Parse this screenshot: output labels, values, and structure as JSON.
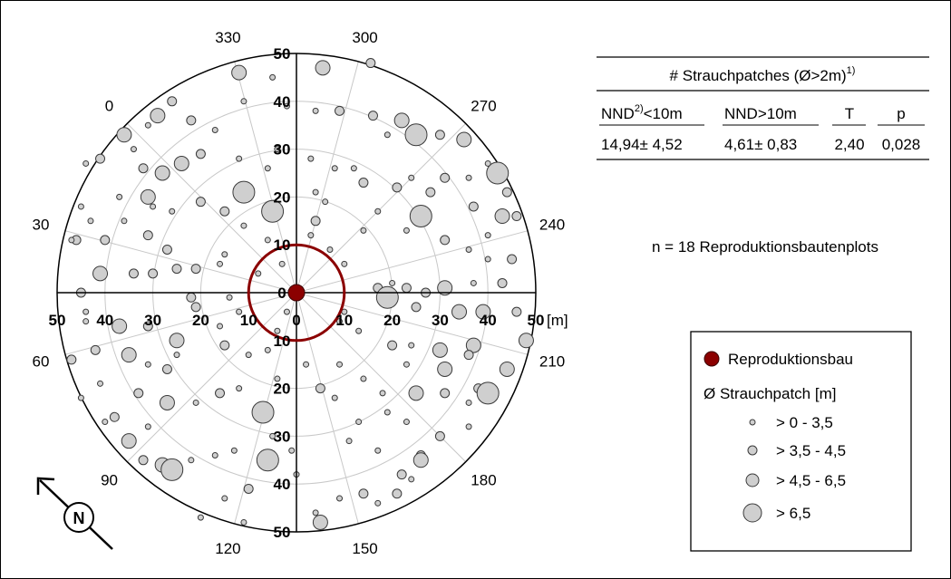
{
  "chart_data": {
    "type": "scatter",
    "subtype": "polar",
    "radial_ticks": [
      "10",
      "20",
      "30",
      "40",
      "50"
    ],
    "radial_zero": "0",
    "radial_max": 50,
    "unit_label": "[m]",
    "angle_labels": [
      {
        "label": "300",
        "deg": 300
      },
      {
        "label": "270",
        "deg": 270
      },
      {
        "label": "240",
        "deg": 240
      },
      {
        "label": "210",
        "deg": 210
      },
      {
        "label": "180",
        "deg": 180
      },
      {
        "label": "150",
        "deg": 150
      },
      {
        "label": "120",
        "deg": 120
      },
      {
        "label": "90",
        "deg": 90
      },
      {
        "label": "60",
        "deg": 60
      },
      {
        "label": "30",
        "deg": 30
      },
      {
        "label": "0",
        "deg": 0
      },
      {
        "label": "330",
        "deg": 330
      }
    ],
    "inner_ring_radius": 10,
    "center_marker": "Reproduktionsbau",
    "colors": {
      "patch_fill": "#cfcfcf",
      "patch_stroke": "#3a3a3a",
      "burrow": "#8b0000",
      "grid": "#c8c8c8"
    },
    "series": [
      {
        "name": "Strauchpatch",
        "size_classes": [
          "> 0 - 3,5",
          "> 3,5 - 4,5",
          "> 4,5 - 6,5",
          "> 6,5"
        ],
        "points": [
          {
            "x": 5.5,
            "y": 47,
            "s": 3
          },
          {
            "x": 15.5,
            "y": 48,
            "s": 2
          },
          {
            "x": -12,
            "y": 46,
            "s": 3
          },
          {
            "x": -5,
            "y": 45,
            "s": 1
          },
          {
            "x": -11,
            "y": 40,
            "s": 1
          },
          {
            "x": -2,
            "y": 39,
            "s": 1
          },
          {
            "x": 4,
            "y": 38,
            "s": 1
          },
          {
            "x": 9,
            "y": 38,
            "s": 2
          },
          {
            "x": 16,
            "y": 37,
            "s": 2
          },
          {
            "x": 22,
            "y": 36,
            "s": 3
          },
          {
            "x": 30,
            "y": 33,
            "s": 2
          },
          {
            "x": 35,
            "y": 32,
            "s": 3
          },
          {
            "x": 25,
            "y": 33,
            "s": 4
          },
          {
            "x": 19,
            "y": 33,
            "s": 1
          },
          {
            "x": -17,
            "y": 34,
            "s": 1
          },
          {
            "x": -22,
            "y": 36,
            "s": 2
          },
          {
            "x": -26,
            "y": 40,
            "s": 2
          },
          {
            "x": -29,
            "y": 37,
            "s": 3
          },
          {
            "x": -31,
            "y": 35,
            "s": 1
          },
          {
            "x": -36,
            "y": 33,
            "s": 3
          },
          {
            "x": -34,
            "y": 30,
            "s": 1
          },
          {
            "x": -41,
            "y": 28,
            "s": 2
          },
          {
            "x": -44,
            "y": 27,
            "s": 1
          },
          {
            "x": -32,
            "y": 26,
            "s": 2
          },
          {
            "x": -28,
            "y": 25,
            "s": 3
          },
          {
            "x": -24,
            "y": 27,
            "s": 3
          },
          {
            "x": -20,
            "y": 29,
            "s": 2
          },
          {
            "x": -12,
            "y": 28,
            "s": 1
          },
          {
            "x": -11,
            "y": 21,
            "s": 4
          },
          {
            "x": -6,
            "y": 26,
            "s": 1
          },
          {
            "x": -4,
            "y": 30,
            "s": 1
          },
          {
            "x": 3,
            "y": 28,
            "s": 1
          },
          {
            "x": 8,
            "y": 26,
            "s": 1
          },
          {
            "x": 12,
            "y": 26,
            "s": 1
          },
          {
            "x": 14,
            "y": 23,
            "s": 2
          },
          {
            "x": 21,
            "y": 22,
            "s": 2
          },
          {
            "x": 24,
            "y": 24,
            "s": 1
          },
          {
            "x": 28,
            "y": 21,
            "s": 2
          },
          {
            "x": 31,
            "y": 24,
            "s": 2
          },
          {
            "x": 36,
            "y": 24,
            "s": 1
          },
          {
            "x": 42,
            "y": 25,
            "s": 4
          },
          {
            "x": 44,
            "y": 21,
            "s": 2
          },
          {
            "x": 37,
            "y": 18,
            "s": 2
          },
          {
            "x": 43,
            "y": 16,
            "s": 3
          },
          {
            "x": 46,
            "y": 16,
            "s": 2
          },
          {
            "x": 40,
            "y": 12,
            "s": 1
          },
          {
            "x": 26,
            "y": 16,
            "s": 4
          },
          {
            "x": 17,
            "y": 17,
            "s": 1
          },
          {
            "x": 4,
            "y": 21,
            "s": 1
          },
          {
            "x": 4,
            "y": 15,
            "s": 2
          },
          {
            "x": 7,
            "y": 9,
            "s": 1
          },
          {
            "x": 10,
            "y": 6,
            "s": 1
          },
          {
            "x": 14,
            "y": 13,
            "s": 1
          },
          {
            "x": 23,
            "y": 13,
            "s": 1
          },
          {
            "x": 31,
            "y": 11,
            "s": 2
          },
          {
            "x": 36,
            "y": 9,
            "s": 1
          },
          {
            "x": 40,
            "y": 7,
            "s": 1
          },
          {
            "x": 45,
            "y": 7,
            "s": 2
          },
          {
            "x": 43,
            "y": 2,
            "s": 2
          },
          {
            "x": 37,
            "y": 2,
            "s": 1
          },
          {
            "x": 31,
            "y": 1,
            "s": 3
          },
          {
            "x": 27,
            "y": 0,
            "s": 2
          },
          {
            "x": 23,
            "y": 1,
            "s": 2
          },
          {
            "x": 20,
            "y": 2,
            "s": 1
          },
          {
            "x": 17,
            "y": 1,
            "s": 2
          },
          {
            "x": 19,
            "y": -1,
            "s": 4
          },
          {
            "x": 25,
            "y": -3,
            "s": 2
          },
          {
            "x": 34,
            "y": -4,
            "s": 3
          },
          {
            "x": 39,
            "y": -4,
            "s": 3
          },
          {
            "x": 46,
            "y": -4,
            "s": 2
          },
          {
            "x": 48,
            "y": -10,
            "s": 3
          },
          {
            "x": 37,
            "y": -11,
            "s": 3
          },
          {
            "x": 30,
            "y": -12,
            "s": 3
          },
          {
            "x": 24,
            "y": -11,
            "s": 1
          },
          {
            "x": 20,
            "y": -11,
            "s": 2
          },
          {
            "x": 13,
            "y": -8,
            "s": 1
          },
          {
            "x": 10,
            "y": -4,
            "s": 1
          },
          {
            "x": 9,
            "y": -6,
            "s": 1
          },
          {
            "x": 9,
            "y": -15,
            "s": 1
          },
          {
            "x": 14,
            "y": -18,
            "s": 1
          },
          {
            "x": 18,
            "y": -21,
            "s": 1
          },
          {
            "x": 23,
            "y": -15,
            "s": 1
          },
          {
            "x": 31,
            "y": -16,
            "s": 3
          },
          {
            "x": 36,
            "y": -13,
            "s": 2
          },
          {
            "x": 38,
            "y": -20,
            "s": 2
          },
          {
            "x": 44,
            "y": -16,
            "s": 3
          },
          {
            "x": 40,
            "y": -21,
            "s": 4
          },
          {
            "x": 36,
            "y": -23,
            "s": 1
          },
          {
            "x": 31,
            "y": -21,
            "s": 2
          },
          {
            "x": 25,
            "y": -21,
            "s": 3
          },
          {
            "x": 19,
            "y": -25,
            "s": 1
          },
          {
            "x": 13,
            "y": -27,
            "s": 1
          },
          {
            "x": 8,
            "y": -22,
            "s": 1
          },
          {
            "x": 5,
            "y": -20,
            "s": 2
          },
          {
            "x": 2,
            "y": -15,
            "s": 1
          },
          {
            "x": -4,
            "y": -18,
            "s": 1
          },
          {
            "x": -6,
            "y": -12,
            "s": 1
          },
          {
            "x": -4,
            "y": -8,
            "s": 1
          },
          {
            "x": -2,
            "y": -4,
            "s": 1
          },
          {
            "x": -12,
            "y": -4,
            "s": 1
          },
          {
            "x": -16,
            "y": -7,
            "s": 1
          },
          {
            "x": -21,
            "y": -3,
            "s": 2
          },
          {
            "x": -25,
            "y": -10,
            "s": 3
          },
          {
            "x": -25,
            "y": -13,
            "s": 1
          },
          {
            "x": -31,
            "y": -7,
            "s": 2
          },
          {
            "x": -37,
            "y": -7,
            "s": 3
          },
          {
            "x": -44,
            "y": -6,
            "s": 1
          },
          {
            "x": -47,
            "y": -14,
            "s": 2
          },
          {
            "x": -42,
            "y": -12,
            "s": 2
          },
          {
            "x": -35,
            "y": -13,
            "s": 3
          },
          {
            "x": -31,
            "y": -15,
            "s": 1
          },
          {
            "x": -27,
            "y": -16,
            "s": 2
          },
          {
            "x": -15,
            "y": -11,
            "s": 2
          },
          {
            "x": -10,
            "y": -13,
            "s": 1
          },
          {
            "x": -12,
            "y": -20,
            "s": 1
          },
          {
            "x": -16,
            "y": -21,
            "s": 2
          },
          {
            "x": -21,
            "y": -23,
            "s": 1
          },
          {
            "x": -27,
            "y": -23,
            "s": 3
          },
          {
            "x": -33,
            "y": -21,
            "s": 2
          },
          {
            "x": -41,
            "y": -19,
            "s": 1
          },
          {
            "x": -45,
            "y": -22,
            "s": 1
          },
          {
            "x": -38,
            "y": -26,
            "s": 2
          },
          {
            "x": -35,
            "y": -31,
            "s": 3
          },
          {
            "x": -32,
            "y": -35,
            "s": 2
          },
          {
            "x": -28,
            "y": -36,
            "s": 3
          },
          {
            "x": -26,
            "y": -37,
            "s": 4
          },
          {
            "x": -22,
            "y": -35,
            "s": 1
          },
          {
            "x": -17,
            "y": -34,
            "s": 1
          },
          {
            "x": -13,
            "y": -33,
            "s": 1
          },
          {
            "x": -7,
            "y": -25,
            "s": 4
          },
          {
            "x": -5,
            "y": -30,
            "s": 1
          },
          {
            "x": -1,
            "y": -33,
            "s": 1
          },
          {
            "x": -6,
            "y": -35,
            "s": 4
          },
          {
            "x": -10,
            "y": -41,
            "s": 2
          },
          {
            "x": -15,
            "y": -43,
            "s": 1
          },
          {
            "x": -20,
            "y": -47,
            "s": 1
          },
          {
            "x": -11,
            "y": -48,
            "s": 1
          },
          {
            "x": 4,
            "y": -46,
            "s": 1
          },
          {
            "x": 5,
            "y": -48,
            "s": 3
          },
          {
            "x": 9,
            "y": -43,
            "s": 1
          },
          {
            "x": 14,
            "y": -42,
            "s": 2
          },
          {
            "x": 17,
            "y": -44,
            "s": 1
          },
          {
            "x": 22,
            "y": -38,
            "s": 2
          },
          {
            "x": 24,
            "y": -39,
            "s": 1
          },
          {
            "x": 21,
            "y": -42,
            "s": 2
          },
          {
            "x": 26,
            "y": -34,
            "s": 2
          },
          {
            "x": 26,
            "y": -35,
            "s": 3
          },
          {
            "x": 30,
            "y": -30,
            "s": 2
          },
          {
            "x": 36,
            "y": -28,
            "s": 1
          },
          {
            "x": 23,
            "y": -27,
            "s": 1
          },
          {
            "x": 17,
            "y": -33,
            "s": 1
          },
          {
            "x": 11,
            "y": -31,
            "s": 1
          },
          {
            "x": 0,
            "y": -38,
            "s": 1
          },
          {
            "x": -31,
            "y": -28,
            "s": 1
          },
          {
            "x": -40,
            "y": -27,
            "s": 1
          },
          {
            "x": -44,
            "y": -4,
            "s": 1
          },
          {
            "x": -46,
            "y": 11,
            "s": 2
          },
          {
            "x": -40,
            "y": 11,
            "s": 2
          },
          {
            "x": -36,
            "y": 15,
            "s": 1
          },
          {
            "x": -31,
            "y": 12,
            "s": 2
          },
          {
            "x": -27,
            "y": 9,
            "s": 2
          },
          {
            "x": -25,
            "y": 5,
            "s": 2
          },
          {
            "x": -21,
            "y": 5,
            "s": 2
          },
          {
            "x": -16,
            "y": 6,
            "s": 1
          },
          {
            "x": -15,
            "y": 8,
            "s": 1
          },
          {
            "x": -11,
            "y": 14,
            "s": 1
          },
          {
            "x": -15,
            "y": 17,
            "s": 2
          },
          {
            "x": -20,
            "y": 19,
            "s": 2
          },
          {
            "x": -26,
            "y": 17,
            "s": 1
          },
          {
            "x": -30,
            "y": 18,
            "s": 1
          },
          {
            "x": -41,
            "y": 4,
            "s": 3
          },
          {
            "x": -45,
            "y": 0,
            "s": 2
          },
          {
            "x": -34,
            "y": 4,
            "s": 2
          },
          {
            "x": -30,
            "y": 4,
            "s": 2
          },
          {
            "x": -22,
            "y": -1,
            "s": 2
          },
          {
            "x": -14,
            "y": -1,
            "s": 1
          },
          {
            "x": -8,
            "y": 4,
            "s": 1
          },
          {
            "x": -3,
            "y": 6,
            "s": 1
          },
          {
            "x": -6,
            "y": 11,
            "s": 1
          },
          {
            "x": -5,
            "y": 17,
            "s": 4
          },
          {
            "x": 3,
            "y": 12,
            "s": 1
          },
          {
            "x": 6,
            "y": 19,
            "s": 1
          },
          {
            "x": -31,
            "y": 20,
            "s": 3
          },
          {
            "x": -37,
            "y": 20,
            "s": 1
          },
          {
            "x": -45,
            "y": 18,
            "s": 1
          },
          {
            "x": -47,
            "y": 11,
            "s": 1
          },
          {
            "x": -43,
            "y": 15,
            "s": 1
          },
          {
            "x": 40,
            "y": 27,
            "s": 1
          }
        ]
      }
    ],
    "table": {
      "title": "# Strauchpatches (Ø>2m)",
      "title_sup": "1)",
      "headers": [
        {
          "text": "NND",
          "sup": "2)",
          "rest": "<10m"
        },
        {
          "text": "NND>10m",
          "sup": "",
          "rest": ""
        },
        {
          "text": "T",
          "sup": "",
          "rest": ""
        },
        {
          "text": "p",
          "sup": "",
          "rest": ""
        }
      ],
      "row": [
        "14,94± 4,52",
        "4,61± 0,83",
        "2,40",
        "0,028"
      ]
    },
    "annotation": "n = 18 Reproduktionsbautenplots",
    "legend": {
      "burrow_label": "Reproduktionsbau",
      "title": "Ø  Strauchpatch [m]",
      "classes": [
        "> 0 - 3,5",
        "> 3,5 - 4,5",
        "> 4,5 - 6,5",
        "> 6,5"
      ],
      "placement": "bottom-right"
    },
    "north_arrow_label": "N"
  }
}
